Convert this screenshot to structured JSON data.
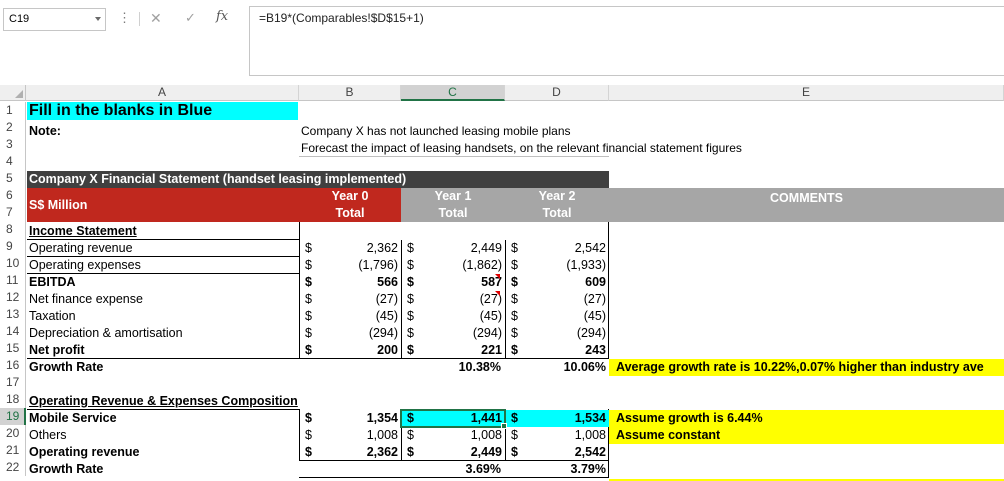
{
  "formula_bar": {
    "name_box": "C19",
    "dots": "⋮",
    "cancel_icon": "✕",
    "enter_icon": "✓",
    "fx_label": "fx",
    "formula": "=B19*(Comparables!$D$15+1)"
  },
  "columns": [
    "A",
    "B",
    "C",
    "D",
    "E"
  ],
  "rows": [
    "1",
    "2",
    "3",
    "4",
    "5",
    "6",
    "7",
    "8",
    "9",
    "10",
    "11",
    "12",
    "13",
    "14",
    "15",
    "16",
    "17",
    "18",
    "19",
    "20",
    "21",
    "22"
  ],
  "cells": {
    "a1": "Fill in the blanks in Blue",
    "a2": "Note:",
    "b2": "Company X has not launched leasing mobile plans",
    "b3": "Forecast the impact of leasing handsets, on the relevant financial statement figures",
    "a5": "Company X Financial Statement (handset leasing implemented)",
    "a6": "S$ Million",
    "b6": "Year 0",
    "b7": "Total",
    "c6": "Year 1",
    "c7": "Total",
    "d6": "Year 2",
    "d7": "Total",
    "e6": "COMMENTS",
    "a8": "Income Statement",
    "a9": "Operating revenue",
    "a10": "Operating expenses",
    "a11": "EBITDA",
    "a12": "Net finance expense",
    "a13": "Taxation",
    "a14": "Depreciation & amortisation",
    "a15": "Net profit",
    "a16": "Growth Rate",
    "a18": "Operating Revenue & Expenses Composition",
    "a19": "Mobile Service",
    "a20": "Others",
    "a21": "Operating revenue",
    "a22": "Growth Rate",
    "e16": "Average growth rate is 10.22%,0.07% higher than industry ave",
    "e19": "Assume growth is 6.44%",
    "e20": "Assume constant"
  },
  "currency": "$",
  "income_rows": [
    {
      "b": "2,362",
      "c": "2,449",
      "d": "2,542"
    },
    {
      "b": "(1,796)",
      "c": "(1,862)",
      "d": "(1,933)"
    },
    {
      "b": "566",
      "c": "587",
      "d": "609"
    },
    {
      "b": "(27)",
      "c": "(27)",
      "d": "(27)"
    },
    {
      "b": "(45)",
      "c": "(45)",
      "d": "(45)"
    },
    {
      "b": "(294)",
      "c": "(294)",
      "d": "(294)"
    },
    {
      "b": "200",
      "c": "221",
      "d": "243"
    }
  ],
  "growth16": {
    "c": "10.38%",
    "d": "10.06%"
  },
  "comp_rows": [
    {
      "b": "1,354",
      "c": "1,441",
      "d": "1,534"
    },
    {
      "b": "1,008",
      "c": "1,008",
      "d": "1,008"
    },
    {
      "b": "2,362",
      "c": "2,449",
      "d": "2,542"
    }
  ],
  "growth22": {
    "c": "3.69%",
    "d": "3.79%"
  }
}
